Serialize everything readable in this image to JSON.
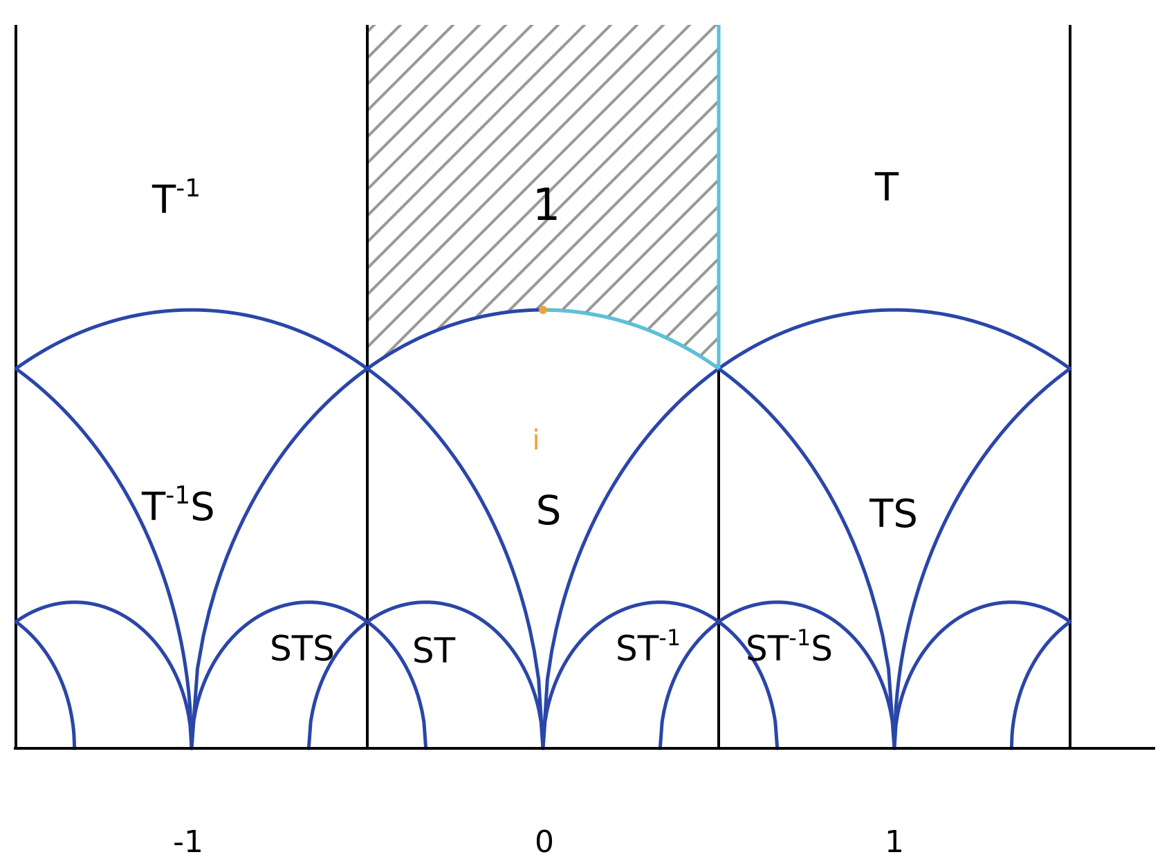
{
  "colors": {
    "frame": "#000000",
    "arc": "#2a46a8",
    "boundary": "#5bc2d8",
    "hatch": "#999999",
    "point": "#e8a43c"
  },
  "axis": {
    "ticks": [
      {
        "value": -1,
        "label": "-1"
      },
      {
        "value": 0,
        "label": "0"
      },
      {
        "value": 1,
        "label": "1"
      }
    ]
  },
  "regions": {
    "t_inv": {
      "base": "T",
      "sup": "-1",
      "rest": ""
    },
    "identity": {
      "base": "1",
      "sup": "",
      "rest": ""
    },
    "t": {
      "base": "T",
      "sup": "",
      "rest": ""
    },
    "t_inv_s": {
      "base": "T",
      "sup": "-1",
      "rest": "S"
    },
    "s": {
      "base": "S",
      "sup": "",
      "rest": ""
    },
    "ts": {
      "base": "TS",
      "sup": "",
      "rest": ""
    },
    "sts": {
      "base": "STS",
      "sup": "",
      "rest": ""
    },
    "st": {
      "base": "ST",
      "sup": "",
      "rest": ""
    },
    "st_inv": {
      "base": "ST",
      "sup": "-1",
      "rest": ""
    },
    "st_inv_s": {
      "base": "ST",
      "sup": "-1",
      "rest": "S"
    }
  },
  "point": {
    "label": "i",
    "re": 0,
    "im": 1
  }
}
